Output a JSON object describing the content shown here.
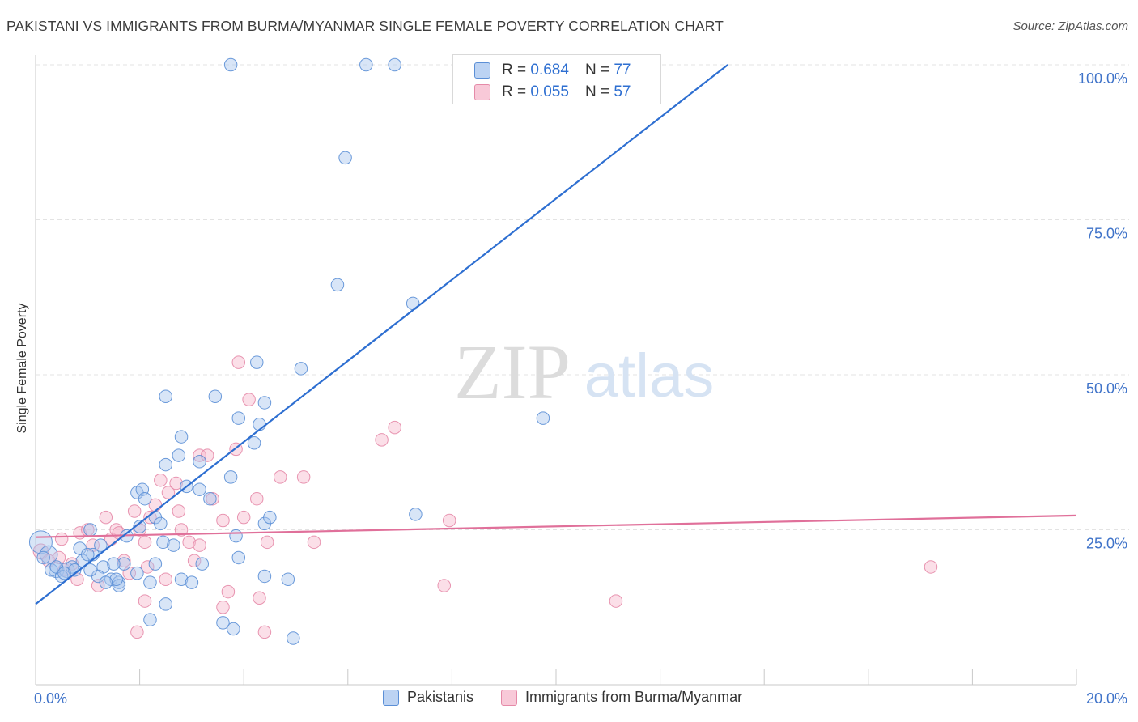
{
  "header": {
    "title": "PAKISTANI VS IMMIGRANTS FROM BURMA/MYANMAR SINGLE FEMALE POVERTY CORRELATION CHART",
    "source": "Source: ZipAtlas.com"
  },
  "watermark": {
    "zip": "ZIP",
    "atlas": "atlas"
  },
  "stats_box": {
    "rows": [
      {
        "r_label": "R =",
        "r_value": "0.684",
        "n_label": "N =",
        "n_value": "77"
      },
      {
        "r_label": "R =",
        "r_value": "0.055",
        "n_label": "N =",
        "n_value": "57"
      }
    ]
  },
  "legend": {
    "items": [
      "Pakistanis",
      "Immigrants from Burma/Myanmar"
    ]
  },
  "colors": {
    "blue_fill": "#a9c6ee",
    "blue_stroke": "#5b8fd6",
    "blue_line": "#2e6fd1",
    "pink_fill": "#f6b8cd",
    "pink_stroke": "#e58aa8",
    "pink_line": "#e0709a",
    "axis_label": "#3f73c9"
  },
  "chart_data": {
    "type": "scatter",
    "title": "PAKISTANI VS IMMIGRANTS FROM BURMA/MYANMAR SINGLE FEMALE POVERTY CORRELATION CHART",
    "xlabel": "",
    "ylabel": "Single Female Poverty",
    "xlim": [
      0,
      20
    ],
    "ylim": [
      0,
      100
    ],
    "x_tick_labels": [
      "0.0%",
      "20.0%"
    ],
    "y_tick_values": [
      25,
      50,
      75,
      100
    ],
    "y_tick_labels": [
      "25.0%",
      "50.0%",
      "75.0%",
      "100.0%"
    ],
    "series": [
      {
        "name": "Pakistanis",
        "R": 0.684,
        "N": 77,
        "trend": {
          "x": [
            0,
            13.3
          ],
          "y": [
            13,
            100
          ]
        },
        "points": [
          [
            0.1,
            23,
            9
          ],
          [
            0.25,
            21,
            7
          ],
          [
            0.4,
            18.5,
            6
          ],
          [
            0.6,
            18.5,
            6
          ],
          [
            0.3,
            18.5,
            5
          ],
          [
            0.5,
            17.5,
            5
          ],
          [
            0.7,
            19,
            5
          ],
          [
            0.9,
            20,
            5
          ],
          [
            0.85,
            22,
            5
          ],
          [
            1.1,
            21,
            5
          ],
          [
            1.3,
            19,
            5
          ],
          [
            1.2,
            17.5,
            5
          ],
          [
            1.45,
            17,
            5
          ],
          [
            1.6,
            16.5,
            5
          ],
          [
            0.75,
            18.5,
            5
          ],
          [
            1.05,
            18.5,
            5
          ],
          [
            1.0,
            21,
            5
          ],
          [
            1.25,
            22.5,
            5
          ],
          [
            1.7,
            19.5,
            5
          ],
          [
            1.5,
            19.5,
            5
          ],
          [
            1.75,
            24,
            5
          ],
          [
            1.05,
            25,
            5
          ],
          [
            1.95,
            31,
            5
          ],
          [
            2.05,
            31.5,
            5
          ],
          [
            2.1,
            30,
            5
          ],
          [
            2.3,
            27,
            5
          ],
          [
            2.4,
            26,
            5
          ],
          [
            2.45,
            23,
            5
          ],
          [
            2.5,
            35.5,
            5
          ],
          [
            2.75,
            37,
            5
          ],
          [
            2.8,
            40,
            5
          ],
          [
            2.9,
            32,
            5
          ],
          [
            3.15,
            36,
            5
          ],
          [
            3.15,
            31.5,
            5
          ],
          [
            3.35,
            30,
            5
          ],
          [
            3.2,
            19.5,
            5
          ],
          [
            2.65,
            22.5,
            5
          ],
          [
            2.8,
            17,
            5
          ],
          [
            2.5,
            13,
            5
          ],
          [
            2.2,
            16.5,
            5
          ],
          [
            2.2,
            10.5,
            5
          ],
          [
            1.6,
            16,
            5
          ],
          [
            3.45,
            46.5,
            5
          ],
          [
            2.5,
            46.5,
            5
          ],
          [
            3.75,
            33.5,
            5
          ],
          [
            3.85,
            24,
            5
          ],
          [
            3.9,
            20.5,
            5
          ],
          [
            3.9,
            43,
            5
          ],
          [
            4.2,
            39,
            5
          ],
          [
            4.3,
            42,
            5
          ],
          [
            4.4,
            45.5,
            5
          ],
          [
            4.4,
            26,
            5
          ],
          [
            4.5,
            27,
            5
          ],
          [
            4.4,
            17.5,
            5
          ],
          [
            4.25,
            52,
            5
          ],
          [
            5.1,
            51,
            5
          ],
          [
            4.85,
            17,
            5
          ],
          [
            4.95,
            7.5,
            5
          ],
          [
            5.8,
            64.5,
            5
          ],
          [
            5.95,
            85,
            5
          ],
          [
            3.6,
            10,
            5
          ],
          [
            3.8,
            9,
            5
          ],
          [
            6.35,
            100,
            5
          ],
          [
            3.75,
            100,
            5
          ],
          [
            6.9,
            100,
            5
          ],
          [
            7.25,
            61.5,
            5
          ],
          [
            7.3,
            27.5,
            5
          ],
          [
            9.75,
            43,
            5
          ],
          [
            3.0,
            16.5,
            5
          ],
          [
            1.95,
            18,
            5
          ],
          [
            1.55,
            17,
            5
          ],
          [
            0.4,
            19,
            5
          ],
          [
            0.55,
            18,
            5
          ],
          [
            0.15,
            20.5,
            5
          ],
          [
            1.35,
            16.5,
            5
          ],
          [
            2.0,
            25.5,
            5
          ],
          [
            2.3,
            19.5,
            5
          ]
        ]
      },
      {
        "name": "Immigrants from Burma/Myanmar",
        "R": 0.055,
        "N": 57,
        "trend": {
          "x": [
            0,
            20
          ],
          "y": [
            23.8,
            27.3
          ]
        },
        "points": [
          [
            0.1,
            21.5,
            6
          ],
          [
            0.25,
            20,
            5
          ],
          [
            0.45,
            20.5,
            5
          ],
          [
            0.5,
            23.5,
            5
          ],
          [
            0.55,
            18.5,
            5
          ],
          [
            0.7,
            19.5,
            5
          ],
          [
            0.8,
            17,
            5
          ],
          [
            0.85,
            24.5,
            5
          ],
          [
            1.0,
            25,
            5
          ],
          [
            1.1,
            22.5,
            5
          ],
          [
            1.2,
            16,
            5
          ],
          [
            1.35,
            27,
            5
          ],
          [
            1.45,
            23.5,
            5
          ],
          [
            1.55,
            25,
            5
          ],
          [
            1.6,
            24.5,
            5
          ],
          [
            1.7,
            20,
            5
          ],
          [
            1.8,
            18,
            5
          ],
          [
            1.9,
            28,
            5
          ],
          [
            2.0,
            25,
            5
          ],
          [
            2.1,
            23,
            5
          ],
          [
            2.2,
            27,
            5
          ],
          [
            2.3,
            29,
            5
          ],
          [
            2.4,
            33,
            5
          ],
          [
            2.55,
            31,
            5
          ],
          [
            2.7,
            32.5,
            5
          ],
          [
            2.75,
            28,
            5
          ],
          [
            2.8,
            25,
            5
          ],
          [
            2.95,
            23,
            5
          ],
          [
            3.05,
            20,
            5
          ],
          [
            3.15,
            37,
            5
          ],
          [
            3.3,
            37,
            5
          ],
          [
            3.4,
            30,
            5
          ],
          [
            3.6,
            26.5,
            5
          ],
          [
            3.85,
            38,
            5
          ],
          [
            3.9,
            52,
            5
          ],
          [
            4.0,
            27,
            5
          ],
          [
            4.1,
            46,
            5
          ],
          [
            4.3,
            14,
            5
          ],
          [
            4.4,
            8.5,
            5
          ],
          [
            4.45,
            23,
            5
          ],
          [
            4.7,
            33.5,
            5
          ],
          [
            5.15,
            33.5,
            5
          ],
          [
            5.35,
            23,
            5
          ],
          [
            3.7,
            15,
            5
          ],
          [
            3.6,
            12.5,
            5
          ],
          [
            2.1,
            13.5,
            5
          ],
          [
            1.95,
            8.5,
            5
          ],
          [
            2.15,
            19,
            5
          ],
          [
            2.5,
            17,
            5
          ],
          [
            3.15,
            22.5,
            5
          ],
          [
            6.65,
            39.5,
            5
          ],
          [
            6.9,
            41.5,
            5
          ],
          [
            7.85,
            16,
            5
          ],
          [
            7.95,
            26.5,
            5
          ],
          [
            11.15,
            13.5,
            5
          ],
          [
            17.2,
            19,
            5
          ],
          [
            4.25,
            30,
            5
          ]
        ]
      }
    ]
  }
}
